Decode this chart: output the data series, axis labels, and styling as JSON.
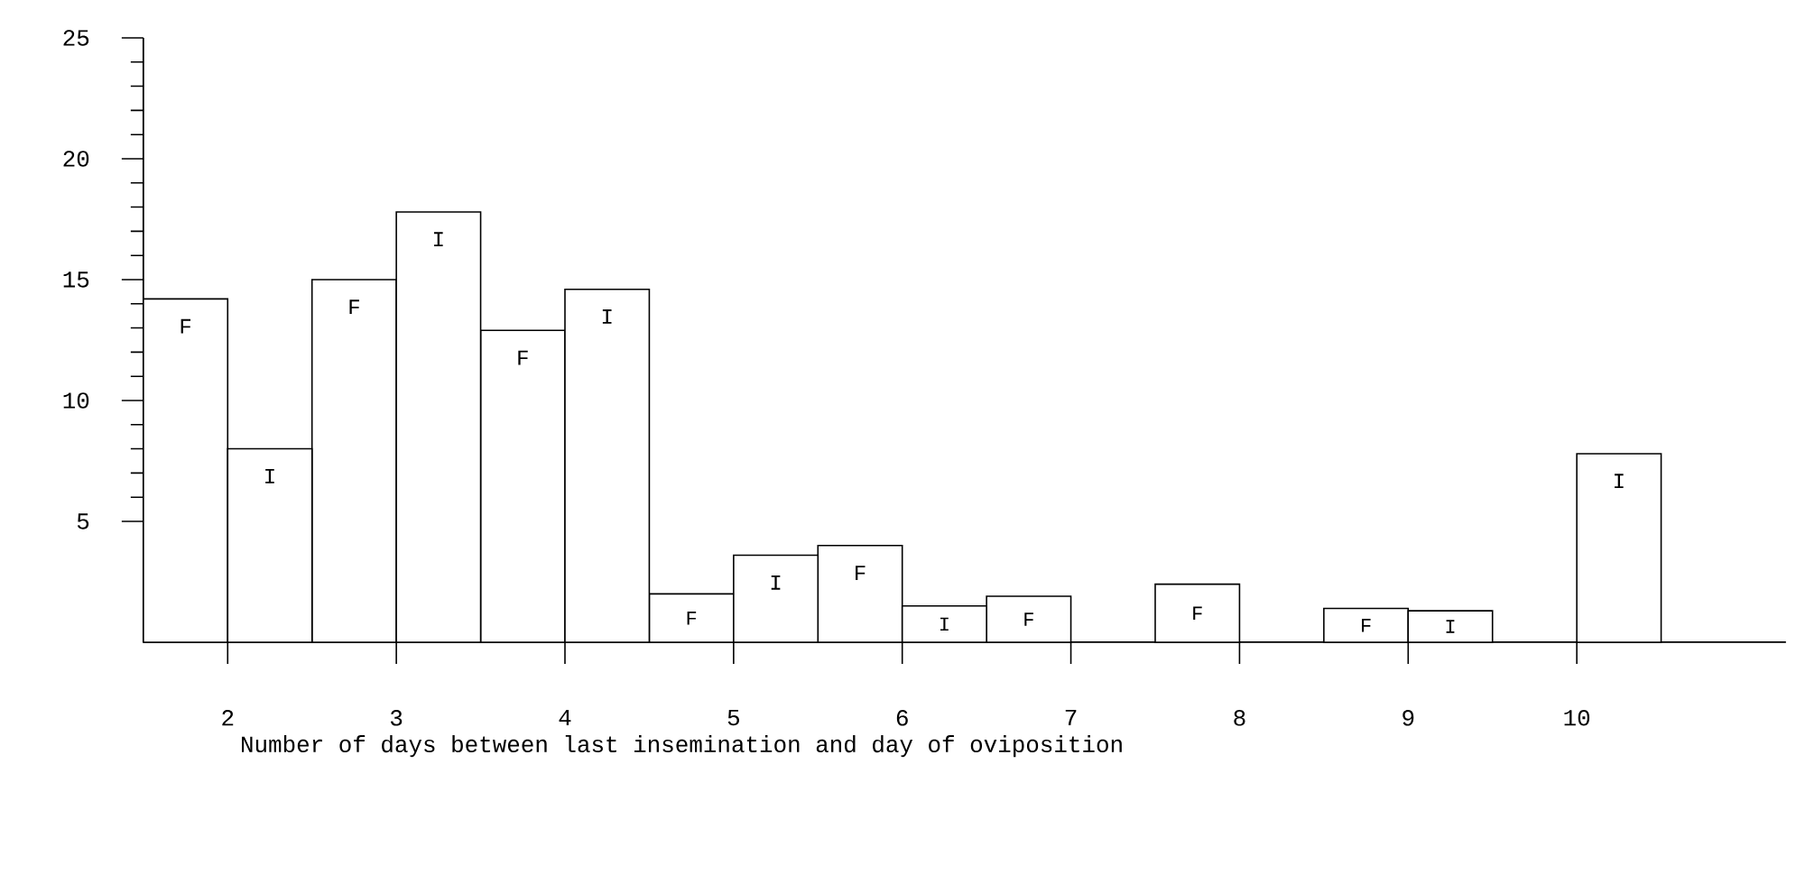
{
  "chart_data": {
    "type": "bar",
    "xlabel": "Number of days between last insemination and day of oviposition",
    "categories": [
      "2",
      "3",
      "4",
      "5",
      "6",
      "7",
      "8",
      "9",
      "10"
    ],
    "series": [
      {
        "name": "F",
        "color": "#ffffff",
        "values": [
          14.2,
          15.0,
          12.9,
          2.0,
          4.0,
          1.9,
          2.4,
          1.4,
          null
        ]
      },
      {
        "name": "I",
        "color": "#ffffff",
        "values": [
          8.0,
          17.8,
          14.6,
          3.6,
          1.5,
          null,
          null,
          1.3,
          7.8
        ]
      }
    ],
    "ylim": [
      0,
      25
    ],
    "yticks": [
      5,
      10,
      15,
      20,
      25
    ]
  }
}
